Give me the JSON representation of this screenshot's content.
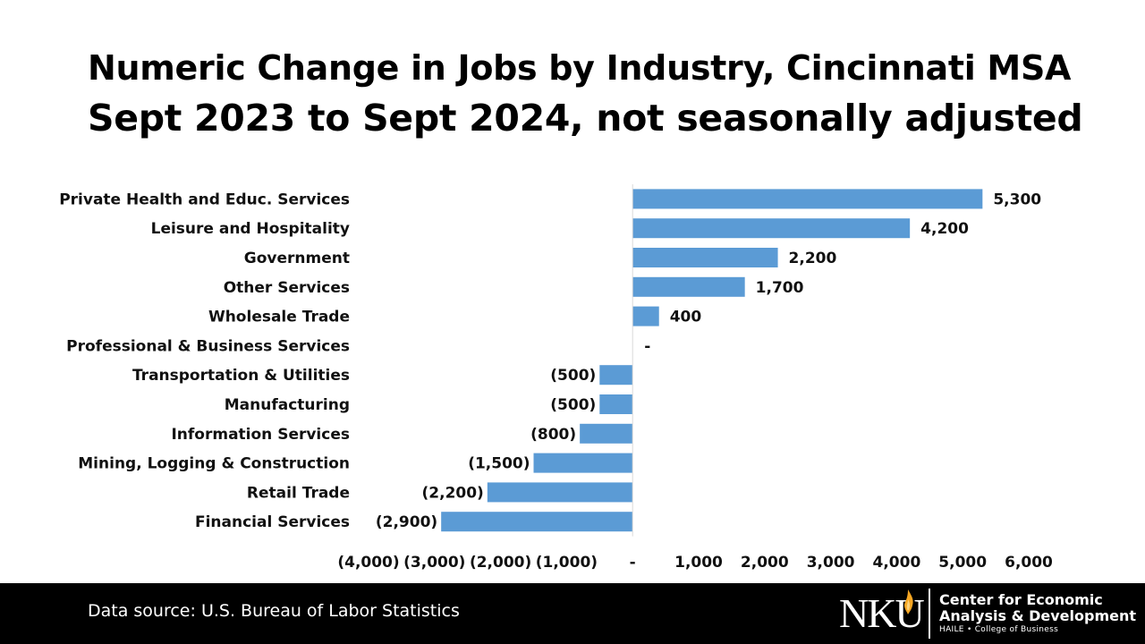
{
  "chart_data": {
    "type": "bar",
    "orientation": "horizontal",
    "title": "Numeric Change in Jobs by Industry, Cincinnati MSA",
    "subtitle": "Sept 2023 to Sept 2024, not seasonally adjusted",
    "categories": [
      "Private Health and Educ. Services",
      "Leisure and Hospitality",
      "Government",
      "Other Services",
      "Wholesale Trade",
      "Professional & Business Services",
      "Transportation & Utilities",
      "Manufacturing",
      "Information Services",
      "Mining, Logging & Construction",
      "Retail Trade",
      "Financial Services"
    ],
    "values": [
      5300,
      4200,
      2200,
      1700,
      400,
      0,
      -500,
      -500,
      -800,
      -1500,
      -2200,
      -2900
    ],
    "data_labels": [
      "5,300",
      "4,200",
      "2,200",
      "1,700",
      "400",
      "-",
      "(500)",
      "(500)",
      "(800)",
      "(1,500)",
      "(2,200)",
      "(2,900)"
    ],
    "xlim": [
      -4000,
      6000
    ],
    "xticks": [
      -4000,
      -3000,
      -2000,
      -1000,
      0,
      1000,
      2000,
      3000,
      4000,
      5000,
      6000
    ],
    "xtick_labels": [
      "(4,000)",
      "(3,000)",
      "(2,000)",
      "(1,000)",
      "-",
      "1,000",
      "2,000",
      "3,000",
      "4,000",
      "5,000",
      "6,000"
    ],
    "bar_color": "#5B9BD5",
    "grid": false,
    "legend": "none"
  },
  "footer": {
    "source": "Data source: U.S. Bureau of Labor Statistics",
    "logo_text": "NKU",
    "center_line1": "Center for Economic",
    "center_line2": "Analysis & Development",
    "college": "HAILE • College of Business"
  }
}
